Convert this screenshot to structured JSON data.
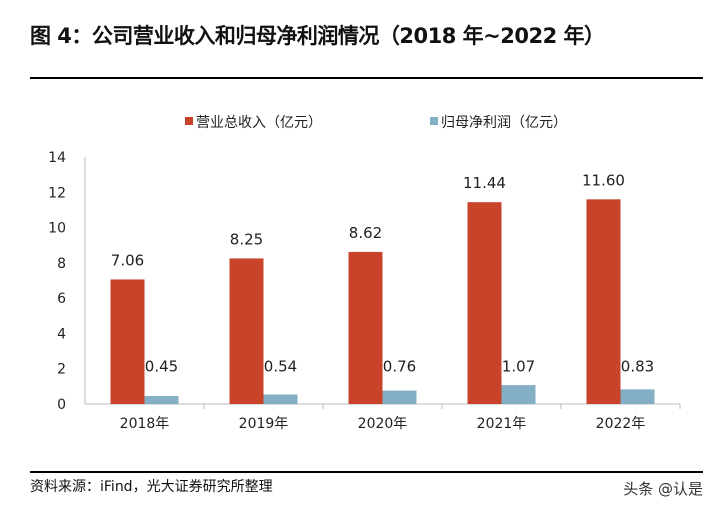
{
  "chart_data": {
    "type": "bar",
    "title": "图 4：公司营业收入和归母净利润情况（2018 年~2022 年）",
    "categories": [
      "2018年",
      "2019年",
      "2020年",
      "2021年",
      "2022年"
    ],
    "series": [
      {
        "name": "营业总收入（亿元）",
        "color": "#C8432A",
        "values": [
          7.06,
          8.25,
          8.62,
          11.44,
          11.6
        ],
        "labels": [
          "7.06",
          "8.25",
          "8.62",
          "11.44",
          "11.60"
        ]
      },
      {
        "name": "归母净利润（亿元）",
        "color": "#84AEC4",
        "values": [
          0.45,
          0.54,
          0.76,
          1.07,
          0.83
        ],
        "labels": [
          "0.45",
          "0.54",
          "0.76",
          "1.07",
          "0.83"
        ]
      }
    ],
    "ylim": [
      0,
      14
    ],
    "yticks": [
      "0",
      "2",
      "4",
      "6",
      "8",
      "10",
      "12",
      "14"
    ],
    "grid": false,
    "legend": "top-center"
  },
  "source": "资料来源：iFind，光大证券研究所整理",
  "watermark": "头条 @认是"
}
